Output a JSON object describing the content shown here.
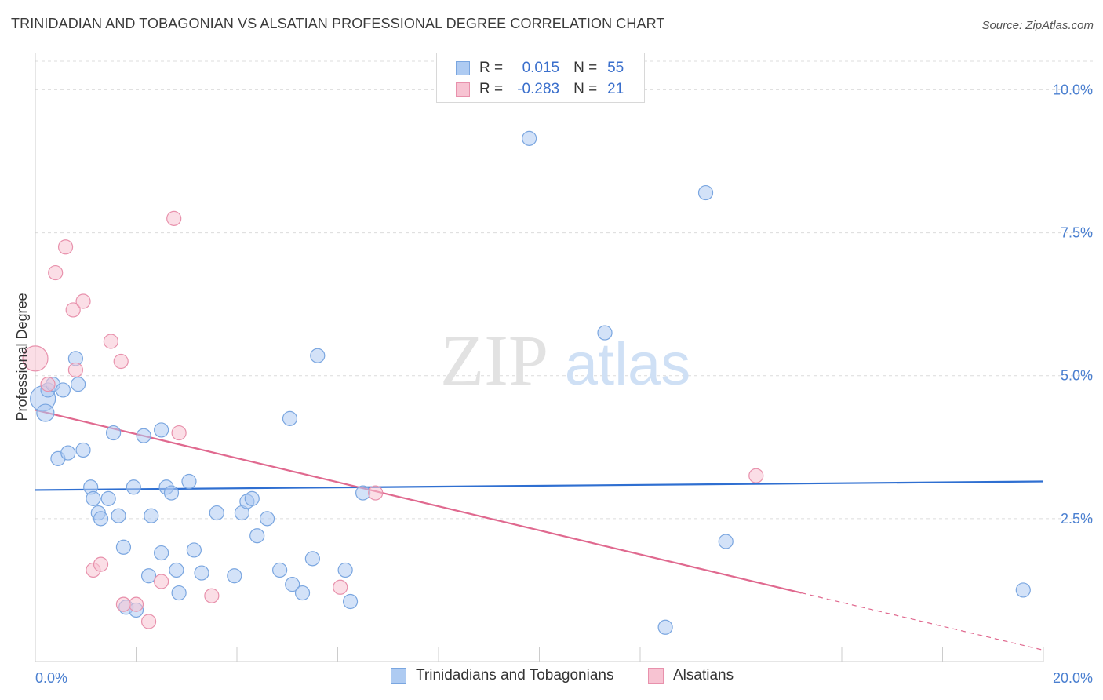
{
  "title": "TRINIDADIAN AND TOBAGONIAN VS ALSATIAN PROFESSIONAL DEGREE CORRELATION CHART",
  "source": "Source: ZipAtlas.com",
  "watermark": {
    "zip": "ZIP",
    "atlas": "atlas"
  },
  "legend_top": [
    {
      "r_label": "R =",
      "r_value": "0.015",
      "n_label": "N =",
      "n_value": "55",
      "color": "#aecbf2",
      "border": "#7aa6e0"
    },
    {
      "r_label": "R =",
      "r_value": "-0.283",
      "n_label": "N =",
      "n_value": "21",
      "color": "#f7c3d2",
      "border": "#e891ac"
    }
  ],
  "legend_bottom": [
    {
      "label": "Trinidadians and Tobagonians",
      "color": "#aecbf2",
      "border": "#7aa6e0"
    },
    {
      "label": "Alsatians",
      "color": "#f7c3d2",
      "border": "#e891ac"
    }
  ],
  "chart_data": {
    "type": "scatter",
    "ylabel": "Professional Degree",
    "xlabel": "",
    "xlim": [
      0,
      20
    ],
    "ylim": [
      0,
      10.5
    ],
    "x_tick_labels": [
      "0.0%",
      "20.0%"
    ],
    "y_ticks": [
      2.5,
      5.0,
      7.5,
      10.0
    ],
    "y_tick_labels": [
      "2.5%",
      "5.0%",
      "7.5%",
      "10.0%"
    ],
    "grid": true,
    "series": [
      {
        "name": "Trinidadians and Tobagonians",
        "color": "#7aa6e0",
        "fill": "#aecbf2",
        "line_color": "#2f6fd1",
        "trend": [
          [
            0,
            3.0
          ],
          [
            20,
            3.15
          ]
        ],
        "points": [
          [
            0.15,
            4.6,
            16
          ],
          [
            0.2,
            4.35,
            11
          ],
          [
            0.25,
            4.75,
            9
          ],
          [
            0.35,
            4.85,
            9
          ],
          [
            0.55,
            4.75,
            9
          ],
          [
            0.8,
            5.3,
            9
          ],
          [
            0.85,
            4.85,
            9
          ],
          [
            0.45,
            3.55,
            9
          ],
          [
            0.65,
            3.65,
            9
          ],
          [
            0.95,
            3.7,
            9
          ],
          [
            1.55,
            4.0,
            9
          ],
          [
            2.15,
            3.95,
            9
          ],
          [
            2.5,
            4.05,
            9
          ],
          [
            1.1,
            3.05,
            9
          ],
          [
            1.15,
            2.85,
            9
          ],
          [
            1.45,
            2.85,
            9
          ],
          [
            1.25,
            2.6,
            9
          ],
          [
            1.3,
            2.5,
            9
          ],
          [
            1.65,
            2.55,
            9
          ],
          [
            1.95,
            3.05,
            9
          ],
          [
            2.6,
            3.05,
            9
          ],
          [
            2.7,
            2.95,
            9
          ],
          [
            3.05,
            3.15,
            9
          ],
          [
            2.3,
            2.55,
            9
          ],
          [
            1.75,
            2.0,
            9
          ],
          [
            2.5,
            1.9,
            9
          ],
          [
            3.15,
            1.95,
            9
          ],
          [
            3.6,
            2.6,
            9
          ],
          [
            4.1,
            2.6,
            9
          ],
          [
            4.2,
            2.8,
            9
          ],
          [
            4.3,
            2.85,
            9
          ],
          [
            4.6,
            2.5,
            9
          ],
          [
            4.4,
            2.2,
            9
          ],
          [
            2.25,
            1.5,
            9
          ],
          [
            2.8,
            1.6,
            9
          ],
          [
            3.3,
            1.55,
            9
          ],
          [
            2.85,
            1.2,
            9
          ],
          [
            3.95,
            1.5,
            9
          ],
          [
            4.85,
            1.6,
            9
          ],
          [
            5.1,
            1.35,
            9
          ],
          [
            5.3,
            1.2,
            9
          ],
          [
            5.5,
            1.8,
            9
          ],
          [
            6.15,
            1.6,
            9
          ],
          [
            6.25,
            1.05,
            9
          ],
          [
            1.8,
            0.95,
            9
          ],
          [
            2.0,
            0.9,
            9
          ],
          [
            5.05,
            4.25,
            9
          ],
          [
            5.6,
            5.35,
            9
          ],
          [
            6.5,
            2.95,
            9
          ],
          [
            9.8,
            9.15,
            9
          ],
          [
            11.3,
            5.75,
            9
          ],
          [
            13.3,
            8.2,
            9
          ],
          [
            13.7,
            2.1,
            9
          ],
          [
            12.5,
            0.6,
            9
          ],
          [
            19.6,
            1.25,
            9
          ]
        ]
      },
      {
        "name": "Alsatians",
        "color": "#e891ac",
        "fill": "#f7c3d2",
        "line_color": "#e0698f",
        "trend": [
          [
            0,
            4.4
          ],
          [
            15.2,
            1.2
          ]
        ],
        "trend_dashed": [
          [
            15.2,
            1.2
          ],
          [
            20,
            0.2
          ]
        ],
        "points": [
          [
            0.0,
            5.3,
            16
          ],
          [
            0.25,
            4.85,
            9
          ],
          [
            0.4,
            6.8,
            9
          ],
          [
            0.6,
            7.25,
            9
          ],
          [
            0.75,
            6.15,
            9
          ],
          [
            0.95,
            6.3,
            9
          ],
          [
            0.8,
            5.1,
            9
          ],
          [
            1.5,
            5.6,
            9
          ],
          [
            1.7,
            5.25,
            9
          ],
          [
            2.75,
            7.75,
            9
          ],
          [
            2.85,
            4.0,
            9
          ],
          [
            1.15,
            1.6,
            9
          ],
          [
            1.3,
            1.7,
            9
          ],
          [
            1.75,
            1.0,
            9
          ],
          [
            2.0,
            1.0,
            9
          ],
          [
            2.25,
            0.7,
            9
          ],
          [
            2.5,
            1.4,
            9
          ],
          [
            3.5,
            1.15,
            9
          ],
          [
            6.05,
            1.3,
            9
          ],
          [
            6.75,
            2.95,
            9
          ],
          [
            14.3,
            3.25,
            9
          ]
        ]
      }
    ]
  }
}
